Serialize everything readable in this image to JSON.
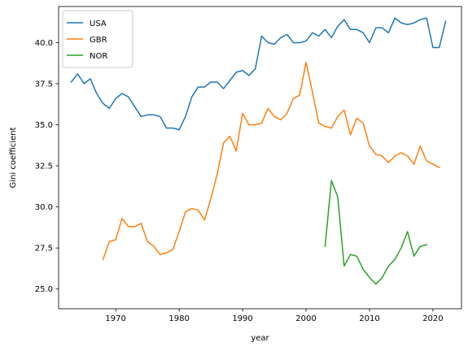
{
  "chart_data": {
    "type": "line",
    "title": "",
    "xlabel": "year",
    "ylabel": "Gini coefficient",
    "xlim": [
      1961,
      2024.5
    ],
    "ylim": [
      23.8,
      42.2
    ],
    "xticks": [
      1970,
      1980,
      1990,
      2000,
      2010,
      2020
    ],
    "yticks": [
      25.0,
      27.5,
      30.0,
      32.5,
      35.0,
      37.5,
      40.0
    ],
    "ytick_labels": [
      "25.0",
      "27.5",
      "30.0",
      "32.5",
      "35.0",
      "37.5",
      "40.0"
    ],
    "grid": false,
    "legend_position": "upper-left",
    "series": [
      {
        "name": "USA",
        "color": "#1f77b4",
        "x": [
          1963,
          1964,
          1965,
          1966,
          1967,
          1968,
          1969,
          1970,
          1971,
          1972,
          1973,
          1974,
          1975,
          1976,
          1977,
          1978,
          1979,
          1980,
          1981,
          1982,
          1983,
          1984,
          1985,
          1986,
          1987,
          1988,
          1989,
          1990,
          1991,
          1992,
          1993,
          1994,
          1995,
          1996,
          1997,
          1998,
          1999,
          2000,
          2001,
          2002,
          2003,
          2004,
          2005,
          2006,
          2007,
          2008,
          2009,
          2010,
          2011,
          2012,
          2013,
          2014,
          2015,
          2016,
          2017,
          2018,
          2019,
          2020,
          2021,
          2022
        ],
        "y": [
          37.6,
          38.1,
          37.5,
          37.8,
          36.9,
          36.3,
          36.0,
          36.6,
          36.9,
          36.7,
          36.1,
          35.5,
          35.6,
          35.6,
          35.5,
          34.8,
          34.8,
          34.7,
          35.5,
          36.7,
          37.3,
          37.3,
          37.6,
          37.6,
          37.2,
          37.7,
          38.2,
          38.3,
          38.0,
          38.4,
          40.4,
          40.0,
          39.9,
          40.3,
          40.5,
          40.0,
          40.0,
          40.1,
          40.6,
          40.4,
          40.8,
          40.3,
          41.0,
          41.4,
          40.8,
          40.8,
          40.6,
          40.0,
          40.9,
          40.9,
          40.6,
          41.5,
          41.2,
          41.1,
          41.2,
          41.4,
          41.5,
          39.7,
          39.7,
          41.3
        ]
      },
      {
        "name": "GBR",
        "color": "#ff7f0e",
        "x": [
          1968,
          1969,
          1970,
          1971,
          1972,
          1973,
          1974,
          1975,
          1976,
          1977,
          1978,
          1979,
          1980,
          1981,
          1982,
          1983,
          1984,
          1985,
          1986,
          1987,
          1988,
          1989,
          1990,
          1991,
          1992,
          1993,
          1994,
          1995,
          1996,
          1997,
          1998,
          1999,
          2000,
          2001,
          2002,
          2003,
          2004,
          2005,
          2006,
          2007,
          2008,
          2009,
          2010,
          2011,
          2012,
          2013,
          2014,
          2015,
          2016,
          2017,
          2018,
          2019,
          2020,
          2021
        ],
        "y": [
          26.8,
          27.9,
          28.0,
          29.3,
          28.8,
          28.8,
          29.0,
          27.9,
          27.6,
          27.1,
          27.2,
          27.4,
          28.5,
          29.7,
          29.9,
          29.8,
          29.2,
          30.5,
          32.0,
          33.9,
          34.3,
          33.4,
          35.7,
          35.0,
          35.0,
          35.1,
          36.0,
          35.5,
          35.3,
          35.7,
          36.6,
          36.8,
          38.8,
          37.0,
          35.1,
          34.9,
          34.8,
          35.5,
          35.9,
          34.4,
          35.4,
          35.1,
          33.7,
          33.2,
          33.1,
          32.7,
          33.1,
          33.3,
          33.1,
          32.6,
          33.7,
          32.8,
          32.6,
          32.4
        ]
      },
      {
        "name": "NOR",
        "color": "#2ca02c",
        "x": [
          2003,
          2004,
          2005,
          2006,
          2007,
          2008,
          2009,
          2010,
          2011,
          2012,
          2013,
          2014,
          2015,
          2016,
          2017,
          2018,
          2019
        ],
        "y": [
          27.6,
          31.6,
          30.6,
          26.4,
          27.1,
          27.0,
          26.2,
          25.7,
          25.3,
          25.7,
          26.4,
          26.8,
          27.5,
          28.5,
          27.0,
          27.6,
          27.7
        ]
      }
    ]
  }
}
